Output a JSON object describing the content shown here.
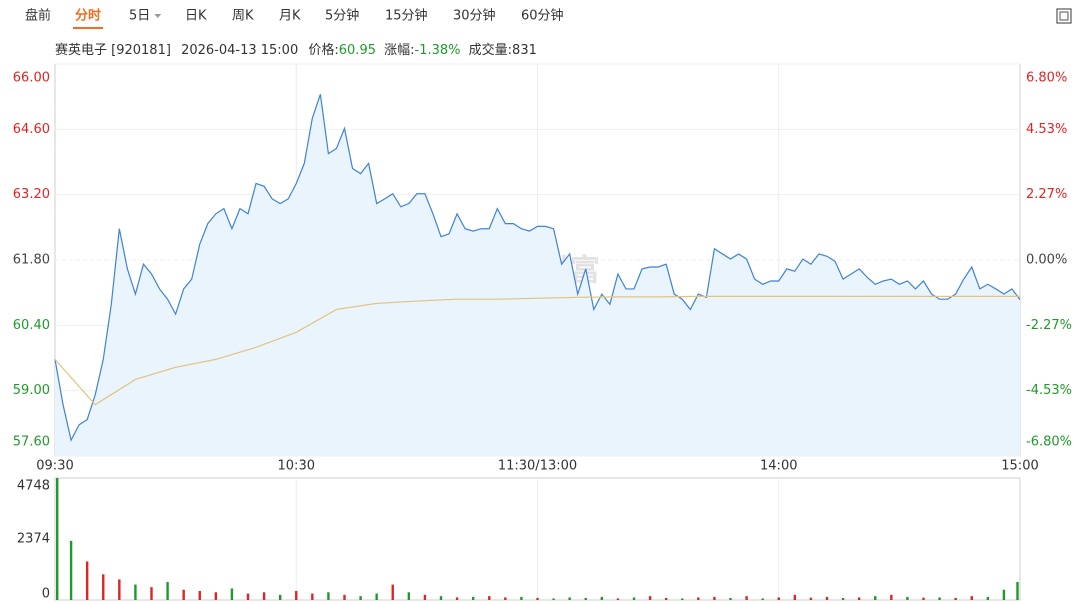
{
  "tabs": [
    "盘前",
    "分时",
    "5日",
    "日K",
    "周K",
    "月K",
    "5分钟",
    "15分钟",
    "30分钟",
    "60分钟"
  ],
  "active_tab": 1,
  "header": {
    "name": "赛英电子",
    "code": "[920181]",
    "datetime": "2026-04-13 15:00",
    "price_label": "价格:",
    "price": "60.95",
    "change_label": "涨幅:",
    "change": "-1.38%",
    "volume_label": "成交量:",
    "volume": "831"
  },
  "watermark": "东方财富",
  "chart_data": [
    {
      "type": "line",
      "xlim": [
        0,
        240
      ],
      "xticks": [
        {
          "value": 0,
          "label": "09:30"
        },
        {
          "value": 60,
          "label": "10:30"
        },
        {
          "value": 120,
          "label": "11:30/13:00"
        },
        {
          "value": 180,
          "label": "14:00"
        },
        {
          "value": 240,
          "label": "15:00"
        }
      ],
      "ylim": [
        57.6,
        66.0
      ],
      "yticks": [
        {
          "value": 57.6,
          "label": "57.60"
        },
        {
          "value": 59.0,
          "label": "59.00"
        },
        {
          "value": 60.4,
          "label": "60.40"
        },
        {
          "value": 61.8,
          "label": "61.80"
        },
        {
          "value": 63.2,
          "label": "63.20"
        },
        {
          "value": 64.6,
          "label": "64.60"
        },
        {
          "value": 66.0,
          "label": "66.00"
        }
      ],
      "y2lim": [
        -6.8,
        6.8
      ],
      "y2ticks": [
        {
          "value": -6.8,
          "label": "-6.80%"
        },
        {
          "value": -4.53,
          "label": "-4.53%"
        },
        {
          "value": -2.27,
          "label": "-2.27%"
        },
        {
          "value": 0,
          "label": "0.00%"
        },
        {
          "value": 2.27,
          "label": "2.27%"
        },
        {
          "value": 4.53,
          "label": "4.53%"
        },
        {
          "value": 6.8,
          "label": "6.80%"
        }
      ],
      "up_color": "#e02424",
      "down_color": "#1f9a2a",
      "flat_color": "#444444",
      "grid": true,
      "series": [
        {
          "color": "#3f82d6",
          "fill": "#e9f4fc",
          "x": [
            0,
            2,
            4,
            6,
            8,
            10,
            12,
            14,
            16,
            18,
            20,
            22,
            24,
            26,
            28,
            30,
            32,
            34,
            36,
            38,
            40,
            42,
            44,
            46,
            48,
            50,
            52,
            54,
            56,
            58,
            60,
            62,
            64,
            66,
            68,
            70,
            72,
            74,
            76,
            78,
            80,
            82,
            84,
            86,
            88,
            90,
            92,
            94,
            96,
            98,
            100,
            102,
            104,
            106,
            108,
            110,
            112,
            114,
            116,
            118,
            120,
            122,
            124,
            126,
            128,
            130,
            132,
            134,
            136,
            138,
            140,
            142,
            144,
            146,
            148,
            150,
            152,
            154,
            156,
            158,
            160,
            162,
            164,
            166,
            168,
            170,
            172,
            174,
            176,
            178,
            180,
            182,
            184,
            186,
            188,
            190,
            192,
            194,
            196,
            198,
            200,
            202,
            204,
            206,
            208,
            210,
            212,
            214,
            216,
            218,
            220,
            222,
            224,
            226,
            228,
            230,
            232,
            234,
            236,
            238,
            240
          ],
          "values": [
            59.67,
            58.7,
            57.94,
            58.27,
            58.38,
            58.91,
            59.67,
            60.85,
            62.47,
            61.61,
            61.07,
            61.71,
            61.5,
            61.18,
            60.96,
            60.64,
            61.18,
            61.39,
            62.14,
            62.58,
            62.79,
            62.9,
            62.47,
            62.9,
            62.79,
            63.44,
            63.38,
            63.11,
            63.01,
            63.11,
            63.44,
            63.87,
            64.84,
            65.35,
            64.08,
            64.19,
            64.62,
            63.76,
            63.65,
            63.87,
            63.01,
            63.11,
            63.22,
            62.94,
            63.01,
            63.22,
            63.22,
            62.79,
            62.3,
            62.36,
            62.79,
            62.47,
            62.42,
            62.47,
            62.47,
            62.9,
            62.58,
            62.58,
            62.47,
            62.42,
            62.52,
            62.52,
            62.47,
            61.71,
            61.93,
            61.07,
            61.61,
            60.74,
            61.07,
            60.85,
            61.5,
            61.18,
            61.18,
            61.61,
            61.65,
            61.65,
            61.71,
            61.07,
            60.96,
            60.74,
            61.07,
            61.0,
            62.04,
            61.93,
            61.82,
            61.93,
            61.82,
            61.39,
            61.28,
            61.35,
            61.35,
            61.61,
            61.56,
            61.82,
            61.71,
            61.93,
            61.88,
            61.77,
            61.39,
            61.5,
            61.61,
            61.43,
            61.28,
            61.35,
            61.39,
            61.28,
            61.35,
            61.18,
            61.35,
            61.07,
            60.96,
            60.96,
            61.07,
            61.39,
            61.65,
            61.18,
            61.28,
            61.18,
            61.07,
            61.18,
            60.95
          ]
        },
        {
          "color": "#e3c47e",
          "x": [
            0,
            10,
            20,
            30,
            40,
            50,
            60,
            70,
            80,
            90,
            100,
            110,
            120,
            130,
            140,
            150,
            160,
            170,
            180,
            190,
            200,
            210,
            220,
            230,
            240
          ],
          "values": [
            59.67,
            58.7,
            59.24,
            59.5,
            59.67,
            59.93,
            60.25,
            60.74,
            60.87,
            60.92,
            60.96,
            60.96,
            60.98,
            61.0,
            61.01,
            61.01,
            61.02,
            61.02,
            61.02,
            61.02,
            61.02,
            61.02,
            61.02,
            61.02,
            61.02
          ]
        }
      ]
    },
    {
      "type": "bar",
      "xlim": [
        0,
        240
      ],
      "ylim": [
        0,
        4748
      ],
      "yticks": [
        0,
        2374,
        4748
      ],
      "x": [
        0,
        4,
        8,
        12,
        16,
        20,
        24,
        28,
        32,
        36,
        40,
        44,
        48,
        52,
        56,
        60,
        64,
        68,
        72,
        76,
        80,
        84,
        88,
        92,
        96,
        100,
        104,
        108,
        112,
        116,
        120,
        124,
        128,
        132,
        136,
        140,
        144,
        148,
        152,
        156,
        160,
        164,
        168,
        172,
        176,
        180,
        184,
        188,
        192,
        196,
        200,
        204,
        208,
        212,
        216,
        220,
        224,
        228,
        232,
        236,
        240
      ],
      "values": [
        4748,
        2300,
        1500,
        1000,
        800,
        600,
        500,
        700,
        400,
        350,
        300,
        450,
        250,
        300,
        200,
        350,
        250,
        300,
        200,
        150,
        250,
        600,
        300,
        200,
        150,
        100,
        120,
        150,
        100,
        120,
        80,
        60,
        100,
        80,
        120,
        60,
        100,
        150,
        80,
        60,
        100,
        120,
        80,
        150,
        60,
        100,
        200,
        90,
        120,
        80,
        100,
        150,
        200,
        120,
        90,
        100,
        80,
        150,
        120,
        400,
        700
      ]
    }
  ]
}
